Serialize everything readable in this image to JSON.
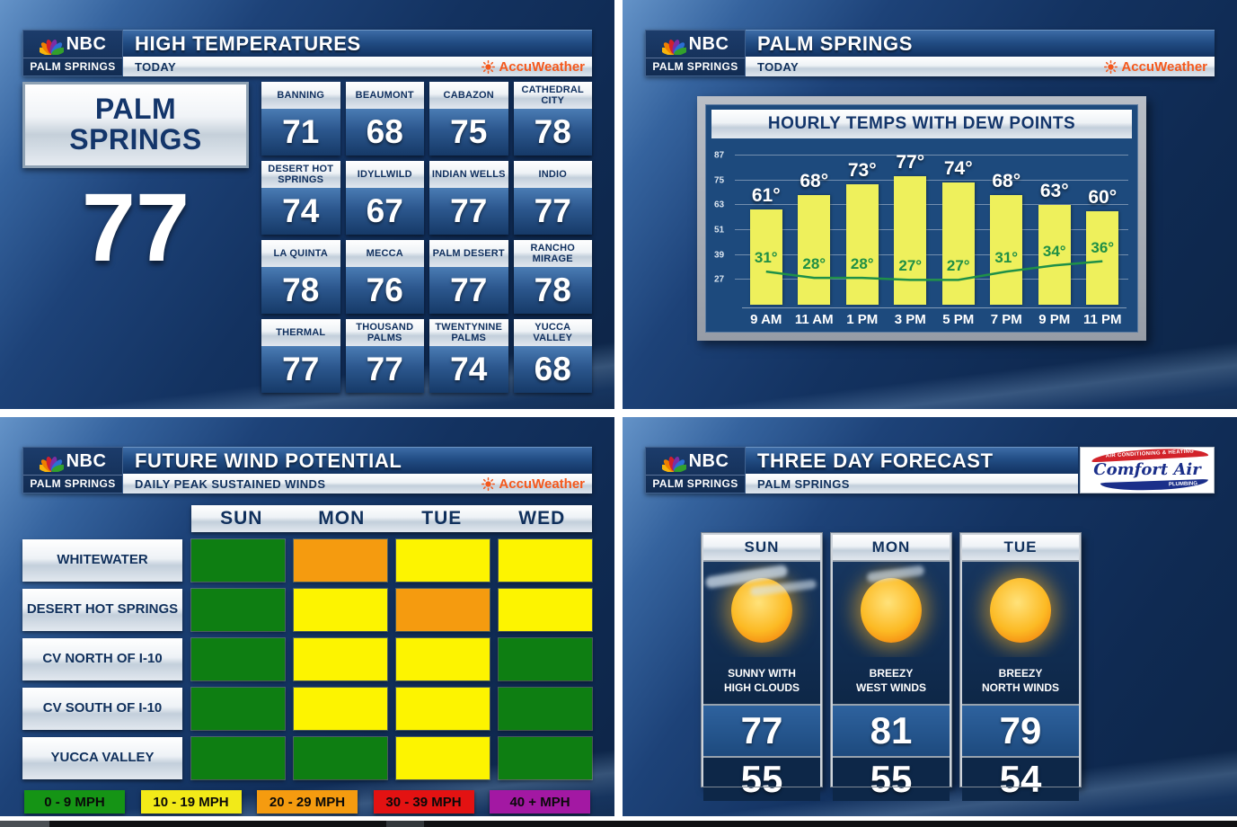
{
  "nbc": {
    "brand": "NBC",
    "station": "PALM SPRINGS"
  },
  "accuweather": {
    "label": "AccuWeather"
  },
  "high_temps": {
    "title": "HIGH TEMPERATURES",
    "subtitle": "TODAY",
    "featured": {
      "city": "PALM SPRINGS",
      "temp": "77"
    },
    "cities": [
      {
        "name": "BANNING",
        "temp": "71"
      },
      {
        "name": "BEAUMONT",
        "temp": "68"
      },
      {
        "name": "CABAZON",
        "temp": "75"
      },
      {
        "name": "CATHEDRAL CITY",
        "temp": "78"
      },
      {
        "name": "DESERT HOT SPRINGS",
        "temp": "74"
      },
      {
        "name": "IDYLLWILD",
        "temp": "67"
      },
      {
        "name": "INDIAN WELLS",
        "temp": "77"
      },
      {
        "name": "INDIO",
        "temp": "77"
      },
      {
        "name": "LA QUINTA",
        "temp": "78"
      },
      {
        "name": "MECCA",
        "temp": "76"
      },
      {
        "name": "PALM DESERT",
        "temp": "77"
      },
      {
        "name": "RANCHO MIRAGE",
        "temp": "78"
      },
      {
        "name": "THERMAL",
        "temp": "77"
      },
      {
        "name": "THOUSAND PALMS",
        "temp": "77"
      },
      {
        "name": "TWENTYNINE PALMS",
        "temp": "74"
      },
      {
        "name": "YUCCA VALLEY",
        "temp": "68"
      }
    ]
  },
  "hourly": {
    "title": "PALM SPRINGS",
    "subtitle": "TODAY",
    "chart_title": "HOURLY TEMPS WITH DEW POINTS"
  },
  "chart_data": {
    "type": "bar",
    "title": "HOURLY TEMPS WITH DEW POINTS",
    "categories": [
      "9 AM",
      "11 AM",
      "1 PM",
      "3 PM",
      "5 PM",
      "7 PM",
      "9 PM",
      "11 PM"
    ],
    "series": [
      {
        "name": "Hourly Temperature (°F)",
        "type": "bar",
        "values": [
          61,
          68,
          73,
          77,
          74,
          68,
          63,
          60
        ]
      },
      {
        "name": "Dew Point (°F)",
        "type": "line",
        "values": [
          31,
          28,
          28,
          27,
          27,
          31,
          34,
          36
        ]
      }
    ],
    "yticks": [
      27,
      39,
      51,
      63,
      75,
      87
    ],
    "ylim": [
      15,
      91
    ],
    "grid": true,
    "legend_position": "none",
    "bar_color": "#eef05c",
    "line_color": "#1f9048"
  },
  "wind": {
    "title": "FUTURE WIND POTENTIAL",
    "subtitle": "DAILY PEAK SUSTAINED WINDS",
    "columns": [
      "SUN",
      "MON",
      "TUE",
      "WED"
    ],
    "rows": [
      {
        "label": "WHITEWATER",
        "cells": [
          "#0e7e12",
          "#f59b0f",
          "#fdf400",
          "#fdf400"
        ]
      },
      {
        "label": "DESERT HOT SPRINGS",
        "cells": [
          "#0e7e12",
          "#fdf400",
          "#f59b0f",
          "#fdf400"
        ]
      },
      {
        "label": "CV NORTH OF I-10",
        "cells": [
          "#0e7e12",
          "#fdf400",
          "#fdf400",
          "#0e7e12"
        ]
      },
      {
        "label": "CV SOUTH OF I-10",
        "cells": [
          "#0e7e12",
          "#fdf400",
          "#fdf400",
          "#0e7e12"
        ]
      },
      {
        "label": "YUCCA VALLEY",
        "cells": [
          "#0e7e12",
          "#0e7e12",
          "#fdf400",
          "#0e7e12"
        ]
      }
    ],
    "legend": [
      {
        "label": "0 - 9 MPH",
        "color": "#159415"
      },
      {
        "label": "10 - 19 MPH",
        "color": "#f2ea18"
      },
      {
        "label": "20 - 29 MPH",
        "color": "#f59b0f"
      },
      {
        "label": "30 - 39 MPH",
        "color": "#e31212"
      },
      {
        "label": "40 + MPH",
        "color": "#a318a3"
      }
    ]
  },
  "three_day": {
    "title": "THREE DAY FORECAST",
    "subtitle": "PALM SPRINGS",
    "sponsor": {
      "name": "Comfort Air",
      "top": "AIR CONDITIONING & HEATING",
      "bottom": "PLUMBING"
    },
    "days": [
      {
        "day": "SUN",
        "icon": "sun-with-high-clouds",
        "condition": "SUNNY WITH\nHIGH CLOUDS",
        "high": "77",
        "low": "55"
      },
      {
        "day": "MON",
        "icon": "sun-with-small-cloud",
        "condition": "BREEZY\nWEST WINDS",
        "high": "81",
        "low": "55"
      },
      {
        "day": "TUE",
        "icon": "sun",
        "condition": "BREEZY\nNORTH WINDS",
        "high": "79",
        "low": "54"
      }
    ]
  }
}
